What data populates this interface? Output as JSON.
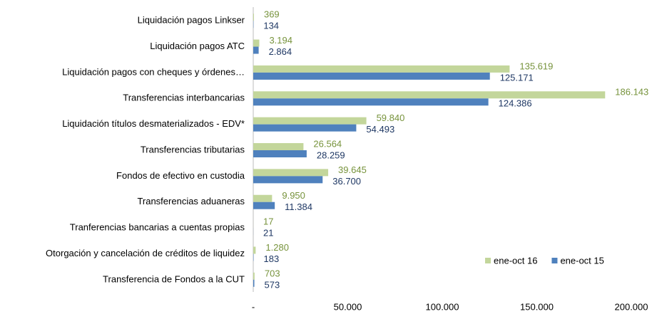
{
  "chart_data": {
    "type": "hbar",
    "categories": [
      "Liquidación pagos Linkser",
      "Liquidación pagos ATC",
      "Liquidación pagos con cheques y órdenes…",
      "Transferencias interbancarias",
      "Liquidación títulos desmaterializados - EDV*",
      "Transferencias tributarias",
      "Fondos de efectivo en custodia",
      "Transferencias aduaneras",
      "Tranferencias bancarias a cuentas propias",
      "Otorgación y cancelación de créditos de liquidez",
      "Transferencia de Fondos a la CUT"
    ],
    "series": [
      {
        "name": "ene-oct 16",
        "color": "#c3d69b",
        "label_color": "#77933c",
        "values": [
          369,
          3194,
          135619,
          186143,
          59840,
          26564,
          39645,
          9950,
          17,
          1280,
          703
        ],
        "value_labels": [
          "369",
          "3.194",
          "135.619",
          "186.143",
          "59.840",
          "26.564",
          "39.645",
          "9.950",
          "17",
          "1.280",
          "703"
        ]
      },
      {
        "name": "ene-oct 15",
        "color": "#4f81bd",
        "label_color": "#1f3864",
        "values": [
          134,
          2864,
          125171,
          124386,
          54493,
          28259,
          36700,
          11384,
          21,
          183,
          573
        ],
        "value_labels": [
          "134",
          "2.864",
          "125.171",
          "124.386",
          "54.493",
          "28.259",
          "36.700",
          "11.384",
          "21",
          "183",
          "573"
        ]
      }
    ],
    "xlim": [
      0,
      200000
    ],
    "xticks": [
      {
        "value": 0,
        "label": "-"
      },
      {
        "value": 50000,
        "label": "50.000"
      },
      {
        "value": 100000,
        "label": "100.000"
      },
      {
        "value": 150000,
        "label": "150.000"
      },
      {
        "value": 200000,
        "label": "200.000"
      }
    ],
    "legend": "lower right"
  }
}
